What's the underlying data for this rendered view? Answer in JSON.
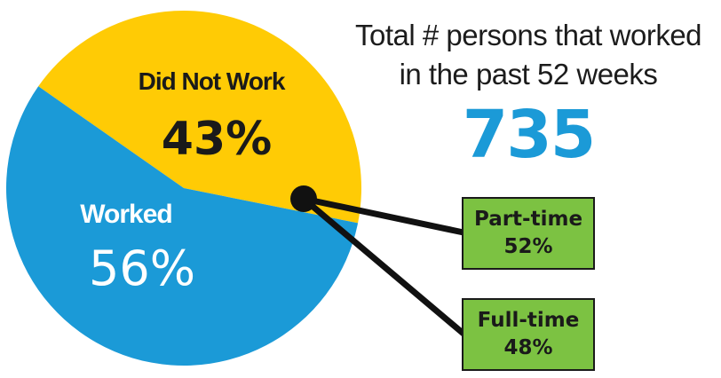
{
  "chart_data": {
    "type": "pie",
    "slices": [
      {
        "label": "Did Not Work",
        "value": 43,
        "value_label": "43%",
        "color": "#FFCB05"
      },
      {
        "label": "Worked",
        "value": 56,
        "value_label": "56%",
        "color": "#1B9AD7"
      }
    ],
    "breakdown": [
      {
        "label": "Part-time",
        "value": 52,
        "value_label": "52%"
      },
      {
        "label": "Full-time",
        "value": 48,
        "value_label": "48%"
      }
    ]
  },
  "headline": {
    "line1": "Total # persons that worked",
    "line2": "in the past 52 weeks",
    "total": "735"
  },
  "colors": {
    "accent_blue": "#1B9AD7",
    "accent_yellow": "#FFCB05",
    "box_green": "#7CC242",
    "connector": "#111111"
  }
}
